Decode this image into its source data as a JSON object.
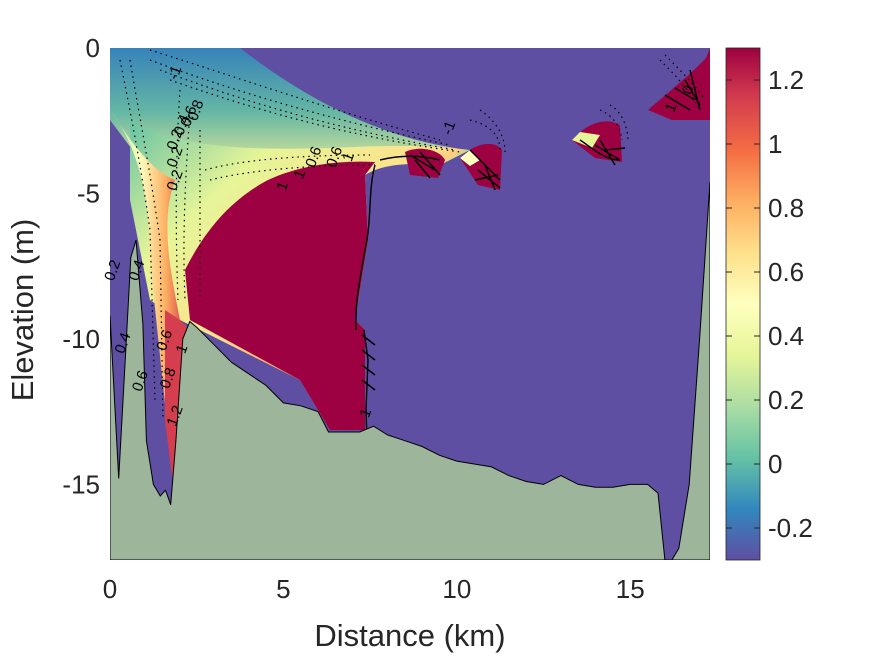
{
  "chart_data": {
    "type": "heatmap",
    "title": "",
    "xlabel": "Distance (km)",
    "ylabel": "Elevation (m)",
    "xlim": [
      0,
      17.3
    ],
    "ylim": [
      -17.6,
      0
    ],
    "xticks": [
      0,
      5,
      10,
      15
    ],
    "xtick_labels": [
      "0",
      "5",
      "10",
      "15"
    ],
    "yticks": [
      0,
      -5,
      -10,
      -15
    ],
    "ytick_labels": [
      "0",
      "-5",
      "-10",
      "-15"
    ],
    "colorbar": {
      "colormap": "spectral",
      "limits": [
        -0.3,
        1.3
      ],
      "ticks": [
        -0.2,
        0,
        0.2,
        0.4,
        0.6,
        0.8,
        1,
        1.2
      ],
      "tick_labels": [
        "-0.2",
        "0",
        "0.2",
        "0.4",
        "0.6",
        "0.8",
        "1",
        "1.2"
      ]
    },
    "colors": {
      "bathymetry_fill": "#9db59b",
      "low_end": "#5e4fa2",
      "high_end": "#9e0142"
    },
    "bottom_profile": [
      [
        0,
        -9.2
      ],
      [
        0.25,
        -14.8
      ],
      [
        0.45,
        -10.5
      ],
      [
        0.6,
        -7.2
      ],
      [
        0.75,
        -6.6
      ],
      [
        0.95,
        -9.5
      ],
      [
        1.05,
        -13.5
      ],
      [
        1.25,
        -15.0
      ],
      [
        1.45,
        -15.4
      ],
      [
        1.6,
        -15.2
      ],
      [
        1.75,
        -15.7
      ],
      [
        1.9,
        -13.5
      ],
      [
        2.1,
        -10.0
      ],
      [
        2.3,
        -9.4
      ],
      [
        2.5,
        -9.6
      ],
      [
        3.0,
        -10.2
      ],
      [
        3.5,
        -10.8
      ],
      [
        4.0,
        -11.2
      ],
      [
        4.5,
        -11.6
      ],
      [
        5.0,
        -12.2
      ],
      [
        5.5,
        -12.3
      ],
      [
        6.0,
        -12.5
      ],
      [
        6.3,
        -13.2
      ],
      [
        7.2,
        -13.2
      ],
      [
        7.6,
        -13.0
      ],
      [
        8.0,
        -13.3
      ],
      [
        8.5,
        -13.5
      ],
      [
        9.0,
        -13.7
      ],
      [
        9.5,
        -14.0
      ],
      [
        10.0,
        -14.2
      ],
      [
        10.5,
        -14.3
      ],
      [
        11.0,
        -14.4
      ],
      [
        11.5,
        -14.7
      ],
      [
        12.0,
        -14.9
      ],
      [
        12.5,
        -15.0
      ],
      [
        13.0,
        -14.7
      ],
      [
        13.5,
        -15.0
      ],
      [
        14.0,
        -15.1
      ],
      [
        14.5,
        -15.1
      ],
      [
        15.0,
        -15.0
      ],
      [
        15.5,
        -15.0
      ],
      [
        15.8,
        -15.3
      ],
      [
        16.0,
        -17.6
      ],
      [
        16.2,
        -17.6
      ],
      [
        16.4,
        -17.2
      ],
      [
        16.7,
        -15.0
      ],
      [
        17.0,
        -10.0
      ],
      [
        17.3,
        -4.6
      ]
    ],
    "contour_labels": [
      {
        "text": "-1",
        "x": 2.0,
        "y": -0.9
      },
      {
        "text": "0.8",
        "x": 2.6,
        "y": -2.2
      },
      {
        "text": "0.6",
        "x": 2.4,
        "y": -2.4
      },
      {
        "text": "0.4",
        "x": 2.2,
        "y": -2.7
      },
      {
        "text": "0.2",
        "x": 2.0,
        "y": -3.2
      },
      {
        "text": "0.2",
        "x": 2.0,
        "y": -3.8
      },
      {
        "text": "0.2",
        "x": 2.0,
        "y": -4.6
      },
      {
        "text": "0.2",
        "x": 0.2,
        "y": -7.7
      },
      {
        "text": "0.4",
        "x": 0.9,
        "y": -7.7
      },
      {
        "text": "0.4",
        "x": 0.5,
        "y": -10.2
      },
      {
        "text": "0.6",
        "x": 1.0,
        "y": -11.5
      },
      {
        "text": "0.6",
        "x": 1.7,
        "y": -10.1
      },
      {
        "text": "0.8",
        "x": 1.8,
        "y": -11.4
      },
      {
        "text": "1",
        "x": 2.2,
        "y": -10.4
      },
      {
        "text": "1.2",
        "x": 2.0,
        "y": -12.7
      },
      {
        "text": "0.6",
        "x": 6.0,
        "y": -3.8
      },
      {
        "text": "0.6",
        "x": 6.6,
        "y": -3.8
      },
      {
        "text": "1",
        "x": 7.0,
        "y": -3.8
      },
      {
        "text": "1",
        "x": 5.1,
        "y": -4.8
      },
      {
        "text": "1",
        "x": 5.6,
        "y": -4.4
      },
      {
        "text": "-1",
        "x": 9.9,
        "y": -2.8
      },
      {
        "text": "1",
        "x": 7.5,
        "y": -12.6
      },
      {
        "text": "1",
        "x": 16.3,
        "y": -2.1
      },
      {
        "text": "0",
        "x": 16.8,
        "y": -1.5
      }
    ]
  }
}
